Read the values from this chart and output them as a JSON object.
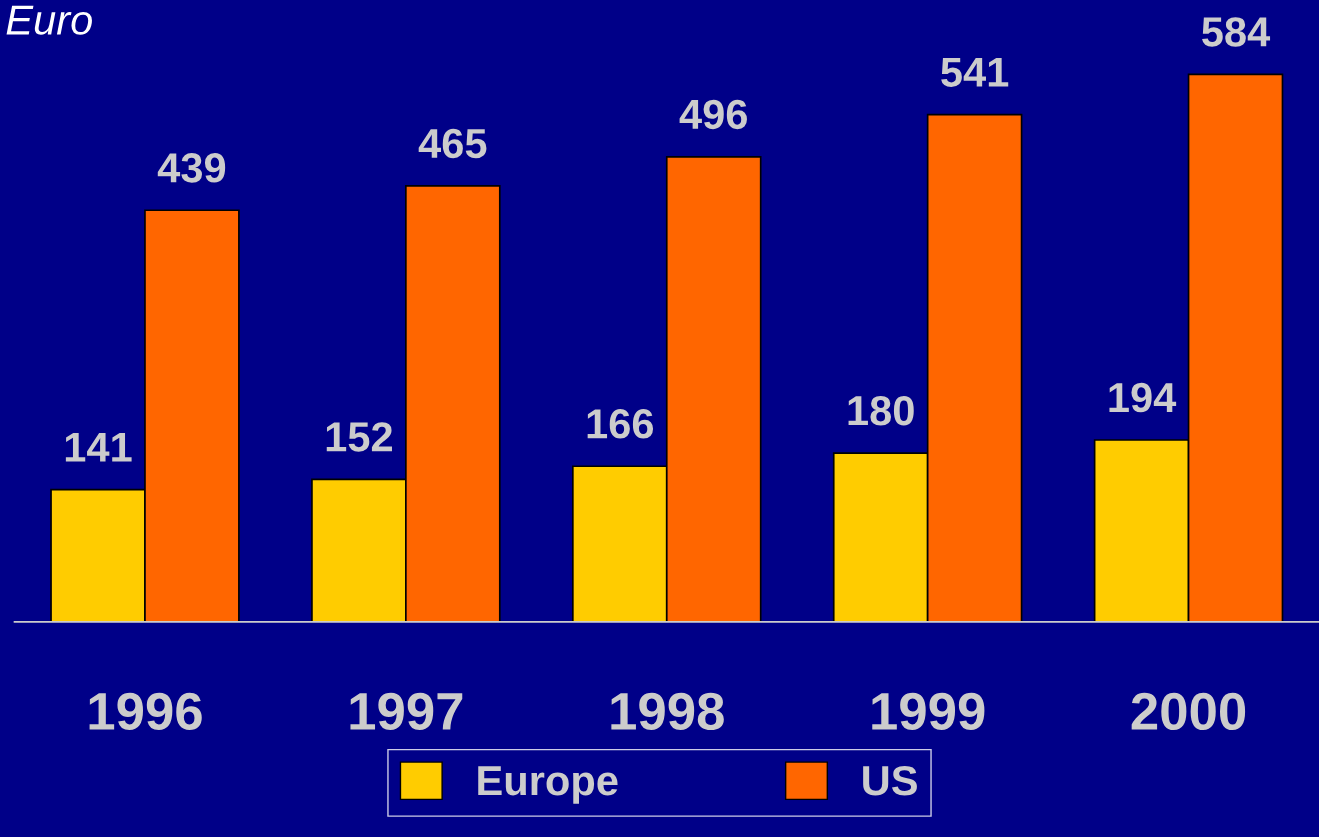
{
  "chart_data": {
    "type": "bar",
    "title": "Euro",
    "categories": [
      "1996",
      "1997",
      "1998",
      "1999",
      "2000"
    ],
    "series": [
      {
        "name": "Europe",
        "color": "#ffcc00",
        "values": [
          141,
          152,
          166,
          180,
          194
        ]
      },
      {
        "name": "US",
        "color": "#ff6600",
        "values": [
          439,
          465,
          496,
          541,
          584
        ]
      }
    ],
    "data_labels": true,
    "legend": "bottom",
    "grid": false,
    "tick_labels": "x"
  }
}
